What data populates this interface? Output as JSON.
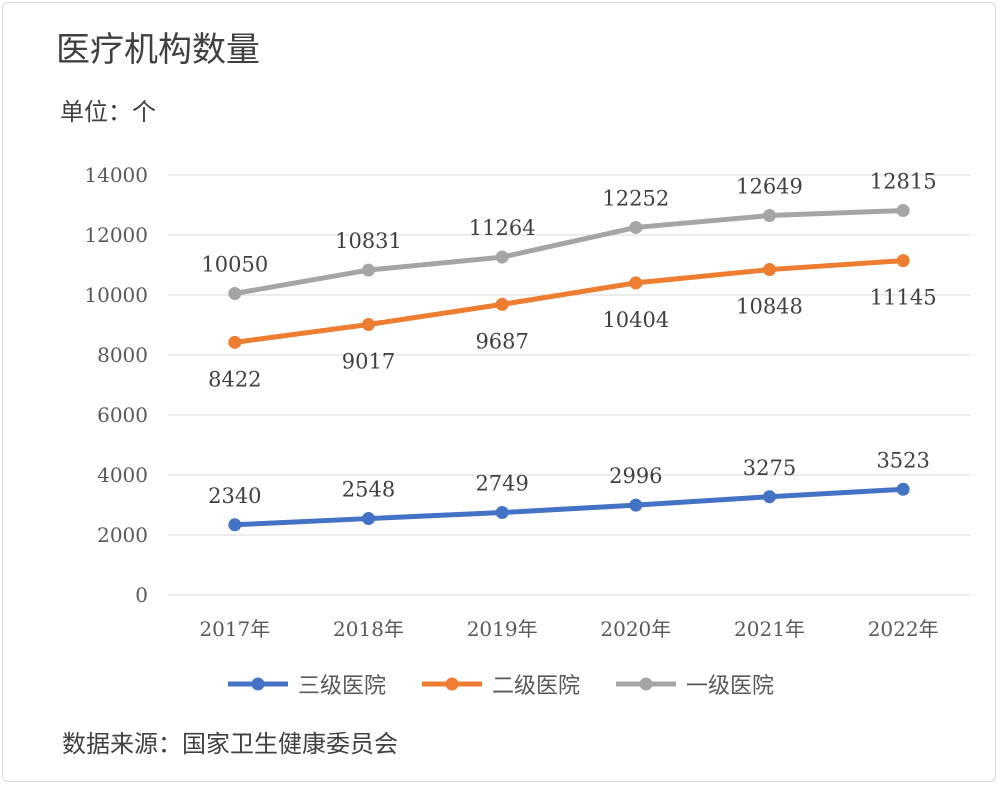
{
  "title": "医疗机构数量",
  "unit": "单位：个",
  "source": "数据来源：国家卫生健康委员会",
  "chart_data": {
    "type": "line",
    "categories": [
      "2017年",
      "2018年",
      "2019年",
      "2020年",
      "2021年",
      "2022年"
    ],
    "ylim": [
      0,
      14000
    ],
    "yticks": [
      0,
      2000,
      4000,
      6000,
      8000,
      10000,
      12000,
      14000
    ],
    "grid": true,
    "legend": "bottom",
    "series": [
      {
        "name": "三级医院",
        "color": "#4472C4",
        "values": [
          2340,
          2548,
          2749,
          2996,
          3275,
          3523
        ],
        "label_pos": [
          "above",
          "above",
          "above",
          "above",
          "above",
          "above"
        ]
      },
      {
        "name": "二级医院",
        "color": "#ED7D31",
        "values": [
          8422,
          9017,
          9687,
          10404,
          10848,
          11145
        ],
        "label_pos": [
          "below",
          "below",
          "below",
          "below",
          "below",
          "below"
        ]
      },
      {
        "name": "一级医院",
        "color": "#A5A5A5",
        "values": [
          10050,
          10831,
          11264,
          12252,
          12649,
          12815
        ],
        "label_pos": [
          "above",
          "above",
          "above",
          "above",
          "above",
          "above"
        ]
      }
    ]
  }
}
